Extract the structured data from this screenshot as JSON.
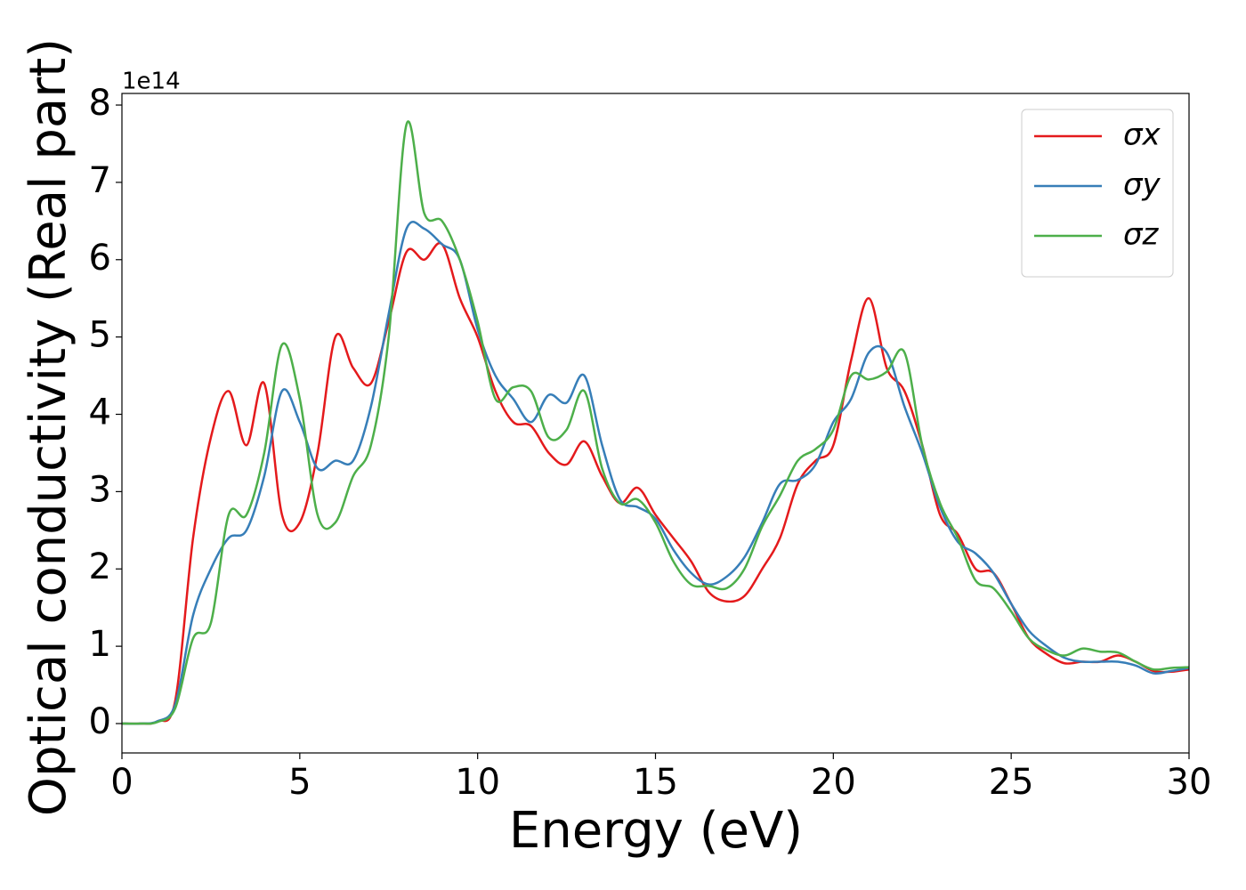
{
  "chart_data": {
    "type": "line",
    "xlabel": "Energy (eV)",
    "ylabel": "Optical conductivity (Real part)",
    "y_offset_label": "1e14",
    "x": [
      0,
      0.5,
      1,
      1.5,
      2,
      2.5,
      3,
      3.5,
      4,
      4.5,
      5,
      5.5,
      6,
      6.5,
      7,
      7.5,
      8,
      8.5,
      9,
      9.5,
      10,
      10.5,
      11,
      11.5,
      12,
      12.5,
      13,
      13.5,
      14,
      14.5,
      15,
      15.5,
      16,
      16.5,
      17,
      17.5,
      18,
      18.5,
      19,
      19.5,
      20,
      20.5,
      21,
      21.5,
      22,
      22.5,
      23,
      23.5,
      24,
      24.5,
      25,
      25.5,
      26,
      26.5,
      27,
      27.5,
      28,
      28.5,
      29,
      29.5,
      30
    ],
    "series": [
      {
        "name": "σx",
        "color": "#e41a1c",
        "values": [
          0,
          0,
          0.03,
          0.3,
          2.4,
          3.7,
          4.3,
          3.6,
          4.4,
          2.7,
          2.6,
          3.5,
          5.0,
          4.6,
          4.4,
          5.2,
          6.1,
          6.0,
          6.2,
          5.5,
          5.0,
          4.3,
          3.9,
          3.85,
          3.5,
          3.35,
          3.65,
          3.2,
          2.85,
          3.05,
          2.7,
          2.4,
          2.1,
          1.7,
          1.58,
          1.65,
          2.0,
          2.4,
          3.1,
          3.4,
          3.6,
          4.7,
          5.5,
          4.6,
          4.3,
          3.6,
          2.7,
          2.45,
          2.0,
          1.95,
          1.55,
          1.1,
          0.9,
          0.78,
          0.8,
          0.8,
          0.88,
          0.8,
          0.68,
          0.67,
          0.7
        ]
      },
      {
        "name": "σy",
        "color": "#377eb8",
        "values": [
          0,
          0,
          0.03,
          0.25,
          1.4,
          2.0,
          2.4,
          2.5,
          3.2,
          4.3,
          3.9,
          3.3,
          3.4,
          3.4,
          4.1,
          5.3,
          6.4,
          6.4,
          6.2,
          6.0,
          5.1,
          4.5,
          4.2,
          3.9,
          4.25,
          4.15,
          4.5,
          3.6,
          2.9,
          2.8,
          2.65,
          2.25,
          1.95,
          1.8,
          1.9,
          2.15,
          2.6,
          3.1,
          3.15,
          3.35,
          3.9,
          4.2,
          4.8,
          4.8,
          4.1,
          3.5,
          2.8,
          2.35,
          2.2,
          1.95,
          1.55,
          1.2,
          1.0,
          0.85,
          0.8,
          0.8,
          0.8,
          0.75,
          0.65,
          0.68,
          0.72
        ]
      },
      {
        "name": "σz",
        "color": "#4daf4a",
        "values": [
          0,
          0,
          0.02,
          0.2,
          1.1,
          1.3,
          2.7,
          2.7,
          3.5,
          4.9,
          4.2,
          2.7,
          2.6,
          3.2,
          3.6,
          5.0,
          7.75,
          6.6,
          6.5,
          6.0,
          5.2,
          4.2,
          4.35,
          4.3,
          3.7,
          3.8,
          4.3,
          3.3,
          2.85,
          2.9,
          2.6,
          2.1,
          1.8,
          1.78,
          1.75,
          2.0,
          2.55,
          2.95,
          3.4,
          3.55,
          3.8,
          4.5,
          4.45,
          4.55,
          4.8,
          3.6,
          2.85,
          2.4,
          1.85,
          1.75,
          1.45,
          1.1,
          0.95,
          0.88,
          0.97,
          0.93,
          0.92,
          0.8,
          0.7,
          0.72,
          0.73
        ]
      }
    ],
    "xlim": [
      0,
      30
    ],
    "ylim": [
      -0.38,
      8.15
    ],
    "xticks": [
      0,
      5,
      10,
      15,
      20,
      25,
      30
    ],
    "yticks": [
      0,
      1,
      2,
      3,
      4,
      5,
      6,
      7,
      8
    ],
    "grid": false,
    "legend": "upper right"
  }
}
